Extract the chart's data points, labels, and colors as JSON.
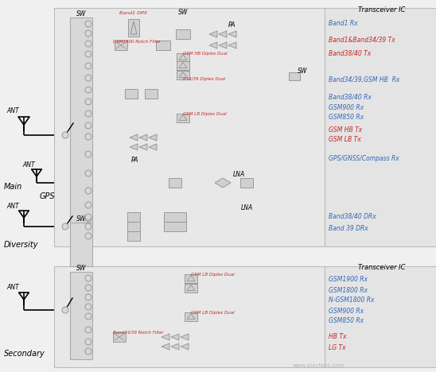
{
  "fig_w": 5.48,
  "fig_h": 4.68,
  "dpi": 100,
  "bg_color": "#f0f0f0",
  "panel_color": "#e8e8e8",
  "panel_edge": "#bbbbbb",
  "sw_block_color": "#d8d8d8",
  "comp_color": "#d0d0d0",
  "comp_edge": "#999999",
  "line_color": "#000000",
  "right_panel_color": "#e4e4e4",
  "transceiver_label": "Transceiver IC",
  "right_labels_top": [
    {
      "text": "Band1 Rx",
      "color": "#3366bb",
      "row": 0
    },
    {
      "text": "Band1&Band34/39 Tx",
      "color": "#cc2222",
      "row": 1
    },
    {
      "text": "Band38/40 Tx",
      "color": "#cc2222",
      "row": 2
    },
    {
      "text": "Band34/39,GSM HB  Rx",
      "color": "#3366bb",
      "row": 3
    },
    {
      "text": "Band38/40 Rx",
      "color": "#3366bb",
      "row": 4
    },
    {
      "text": "GSM900 Rx",
      "color": "#3366bb",
      "row": 5
    },
    {
      "text": "GSM850 Rx",
      "color": "#3366bb",
      "row": 6
    },
    {
      "text": "GSM HB Tx",
      "color": "#cc2222",
      "row": 7
    },
    {
      "text": "GSM LB Tx",
      "color": "#cc2222",
      "row": 8
    },
    {
      "text": "GPS/GNSS/Compass Rx",
      "color": "#3366bb",
      "row": 9
    },
    {
      "text": "Band38/40 DRx",
      "color": "#3366bb",
      "row": 10
    },
    {
      "text": "Band 39 DRx",
      "color": "#3366bb",
      "row": 11
    }
  ],
  "right_labels_bottom": [
    {
      "text": "GSM1900 Rx",
      "color": "#3366bb",
      "row": 0
    },
    {
      "text": "GSM1800 Rx",
      "color": "#3366bb",
      "row": 1
    },
    {
      "text": "N-GSM1800 Rx",
      "color": "#3366bb",
      "row": 2
    },
    {
      "text": "GSM900 Rx",
      "color": "#3366bb",
      "row": 3
    },
    {
      "text": "GSM850 Rx",
      "color": "#3366bb",
      "row": 4
    },
    {
      "text": "HB Tx",
      "color": "#cc2222",
      "row": 5
    },
    {
      "text": "LG Tx",
      "color": "#cc2222",
      "row": 6
    }
  ]
}
